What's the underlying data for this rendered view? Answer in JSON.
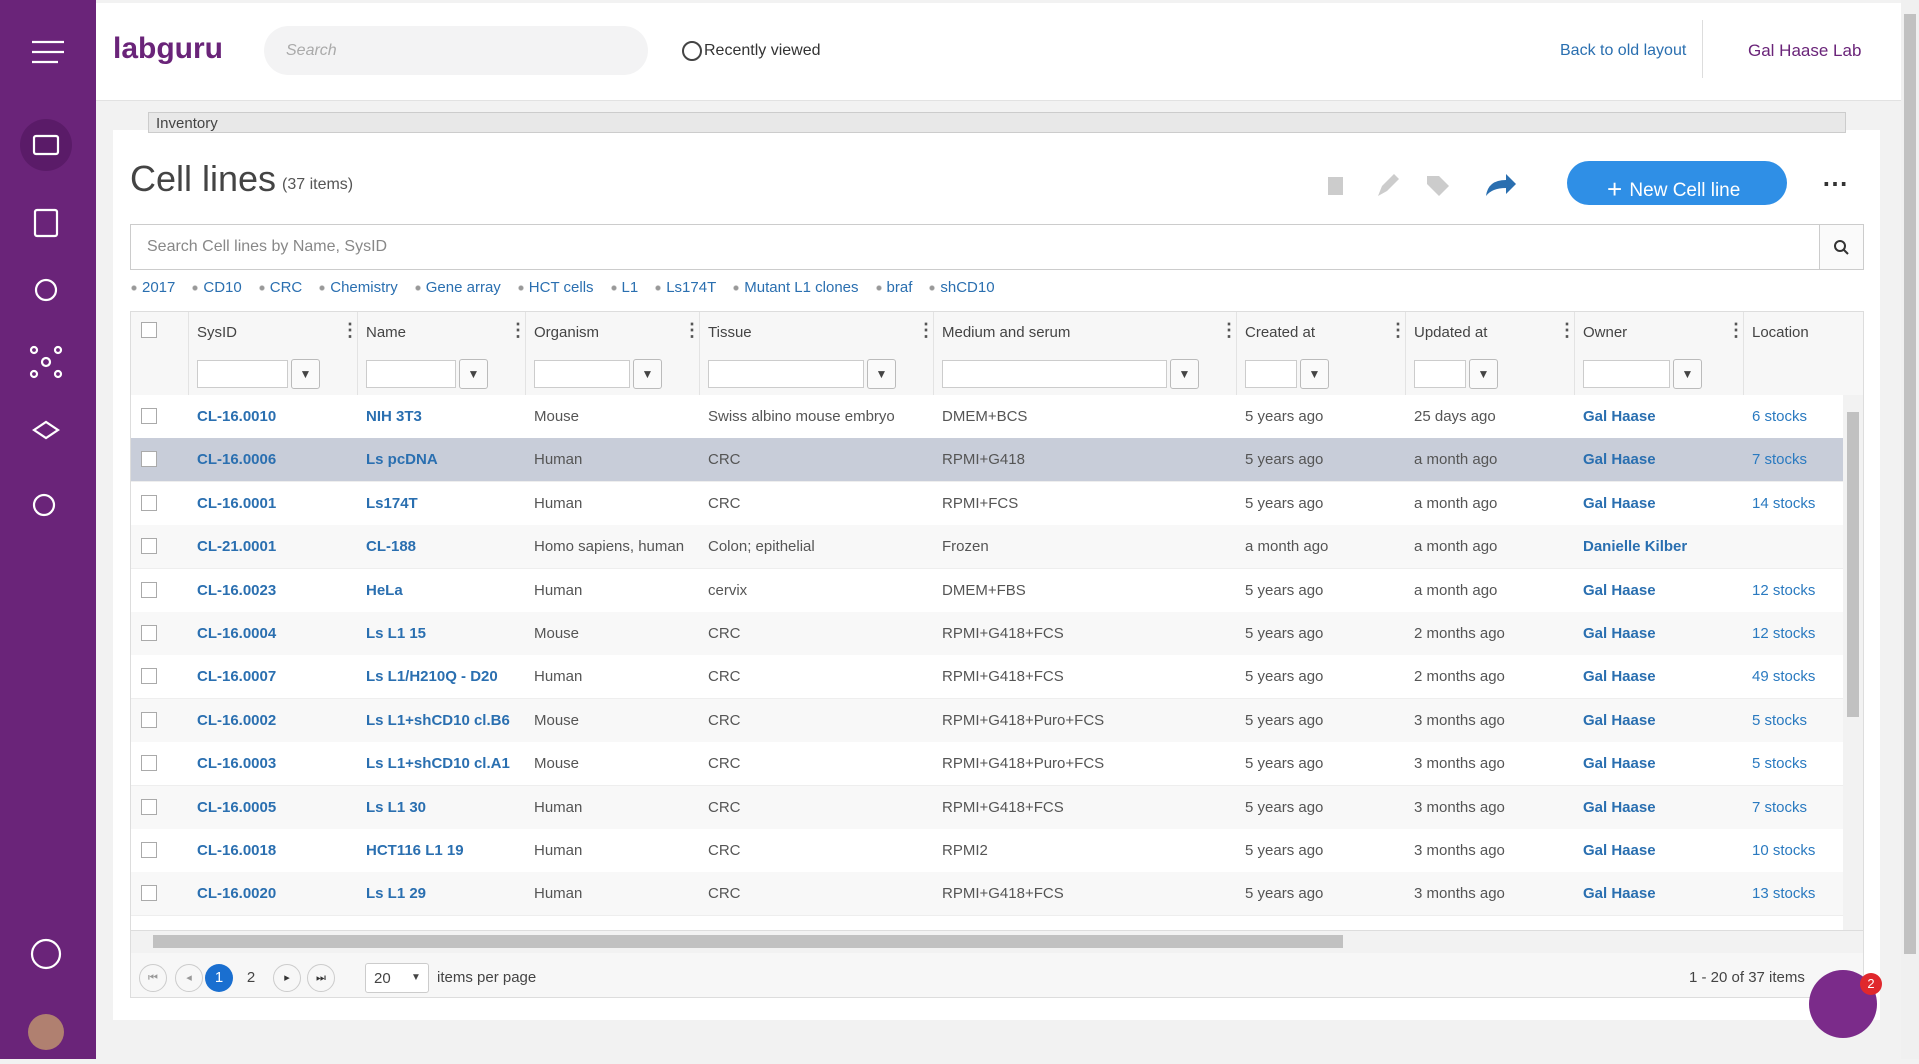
{
  "header": {
    "brand": "labguru",
    "search_placeholder": "Search",
    "recently_viewed": "Recently viewed",
    "back_link": "Back to old layout",
    "lab": "Gal Haase Lab"
  },
  "breadcrumb": "Inventory",
  "page": {
    "title": "Cell lines",
    "count": "(37 items)",
    "new_button": "New Cell line",
    "search_placeholder": "Search Cell lines by Name, SysID"
  },
  "tags": [
    "2017",
    "CD10",
    "CRC",
    "Chemistry",
    "Gene array",
    "HCT cells",
    "L1",
    "Ls174T",
    "Mutant L1 clones",
    "braf",
    "shCD10"
  ],
  "table": {
    "columns": [
      "SysID",
      "Name",
      "Organism",
      "Tissue",
      "Medium and serum",
      "Created at",
      "Updated at",
      "Owner",
      "Location"
    ],
    "rows": [
      [
        "CL-16.0010",
        "NIH 3T3",
        "Mouse",
        "Swiss albino mouse embryo",
        "DMEM+BCS",
        "5 years ago",
        "25 days ago",
        "Gal Haase",
        "6 stocks"
      ],
      [
        "CL-16.0006",
        "Ls pcDNA",
        "Human",
        "CRC",
        "RPMI+G418",
        "5 years ago",
        "a month ago",
        "Gal Haase",
        "7 stocks"
      ],
      [
        "CL-16.0001",
        "Ls174T",
        "Human",
        "CRC",
        "RPMI+FCS",
        "5 years ago",
        "a month ago",
        "Gal Haase",
        "14 stocks"
      ],
      [
        "CL-21.0001",
        "CL-188",
        "Homo sapiens, human",
        "Colon; epithelial",
        "Frozen",
        "a month ago",
        "a month ago",
        "Danielle Kilber"
      ],
      [
        "CL-16.0023",
        "HeLa",
        "Human",
        "cervix",
        "DMEM+FBS",
        "5 years ago",
        "a month ago",
        "Gal Haase",
        "12 stocks"
      ],
      [
        "CL-16.0004",
        "Ls L1 15",
        "Mouse",
        "CRC",
        "RPMI+G418+FCS",
        "5 years ago",
        "2 months ago",
        "Gal Haase",
        "12 stocks"
      ],
      [
        "CL-16.0007",
        "Ls L1/H210Q - D20",
        "Human",
        "CRC",
        "RPMI+G418+FCS",
        "5 years ago",
        "2 months ago",
        "Gal Haase",
        "49 stocks"
      ],
      [
        "CL-16.0002",
        "Ls L1+shCD10 cl.B6",
        "Mouse",
        "CRC",
        "RPMI+G418+Puro+FCS",
        "5 years ago",
        "3 months ago",
        "Gal Haase",
        "5 stocks"
      ],
      [
        "CL-16.0003",
        "Ls L1+shCD10 cl.A1",
        "Mouse",
        "CRC",
        "RPMI+G418+Puro+FCS",
        "5 years ago",
        "3 months ago",
        "Gal Haase",
        "5 stocks"
      ],
      [
        "CL-16.0005",
        "Ls L1 30",
        "Human",
        "CRC",
        "RPMI+G418+FCS",
        "5 years ago",
        "3 months ago",
        "Gal Haase",
        "7 stocks"
      ],
      [
        "CL-16.0018",
        "HCT116 L1 19",
        "Human",
        "CRC",
        "RPMI2",
        "5 years ago",
        "3 months ago",
        "Gal Haase",
        "10 stocks"
      ],
      [
        "CL-16.0020",
        "Ls L1 29",
        "Human",
        "CRC",
        "RPMI+G418+FCS",
        "5 years ago",
        "3 months ago",
        "Gal Haase",
        "13 stocks"
      ]
    ]
  },
  "pagination": {
    "pages": [
      "1",
      "2"
    ],
    "page_size": "20",
    "per_page_label": "items per page",
    "summary": "1 - 20 of 37 items"
  },
  "notifications": "2"
}
